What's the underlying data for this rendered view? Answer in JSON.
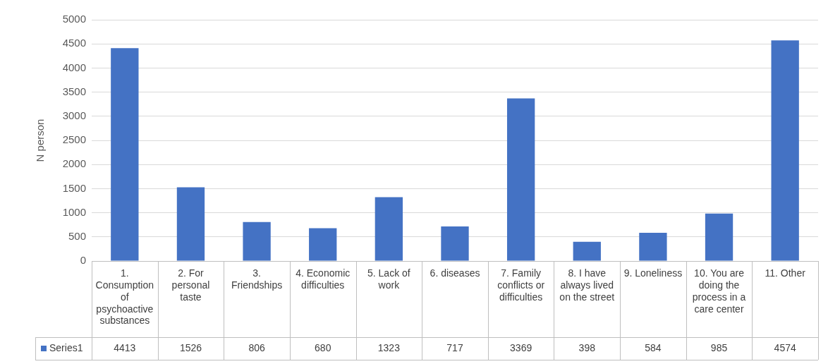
{
  "chart_data": {
    "type": "bar",
    "ylabel": "N person",
    "categories": [
      "1. Consumption of psychoactive substances",
      "2. For personal taste",
      "3. Friendships",
      "4. Economic difficulties",
      "5. Lack of work",
      "6. diseases",
      "7. Family conflicts or difficulties",
      "8. I have always lived on the street",
      "9. Loneliness",
      "10. You are doing the process in a care center",
      "11. Other"
    ],
    "series": [
      {
        "name": "Series1",
        "color": "#4472c4",
        "values": [
          4413,
          1526,
          806,
          680,
          1323,
          717,
          3369,
          398,
          584,
          985,
          4574
        ]
      }
    ],
    "ylim": [
      0,
      5000
    ],
    "yticks": [
      0,
      500,
      1000,
      1500,
      2000,
      2500,
      3000,
      3500,
      4000,
      4500,
      5000
    ],
    "grid": "y",
    "data_labels": true
  }
}
